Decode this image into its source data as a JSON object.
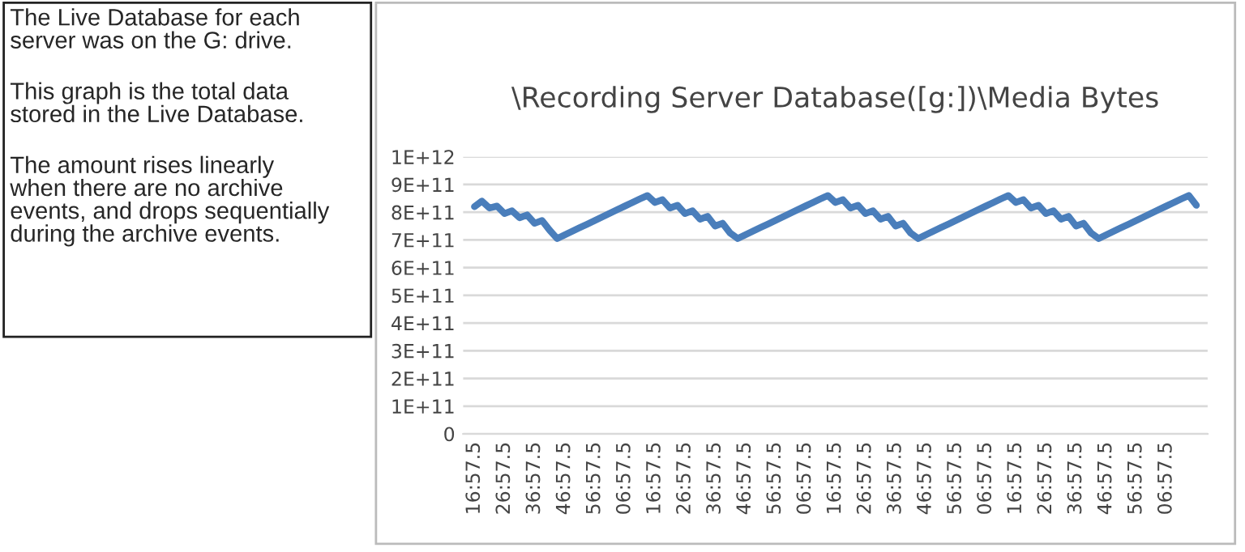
{
  "chart_data": {
    "type": "line",
    "title": "\\Recording Server Database([g:])\\Media Bytes",
    "annotations": [
      "The Live Database for each server was on the G: drive.",
      "This graph is the total data stored in the Live Database.",
      "The amount rises linearly when there are no archive events, and drops sequentially during the archive events."
    ],
    "categories": [
      "16:57.5",
      null,
      null,
      null,
      "26:57.5",
      null,
      null,
      null,
      "36:57.5",
      null,
      null,
      null,
      "46:57.5",
      null,
      null,
      null,
      "56:57.5",
      null,
      null,
      null,
      "06:57.5",
      null,
      null,
      null,
      "16:57.5",
      null,
      null,
      null,
      "26:57.5",
      null,
      null,
      null,
      "36:57.5",
      null,
      null,
      null,
      "46:57.5",
      null,
      null,
      null,
      "56:57.5",
      null,
      null,
      null,
      "06:57.5",
      null,
      null,
      null,
      "16:57.5",
      null,
      null,
      null,
      "26:57.5",
      null,
      null,
      null,
      "36:57.5",
      null,
      null,
      null,
      "46:57.5",
      null,
      null,
      null,
      "56:57.5",
      null,
      null,
      null,
      "06:57.5",
      null,
      null,
      null,
      "16:57.5",
      null,
      null,
      null,
      "26:57.5",
      null,
      null,
      null,
      "36:57.5",
      null,
      null,
      null,
      "46:57.5",
      null,
      null,
      null,
      "56:57.5",
      null,
      null,
      null,
      "06:57.5",
      null,
      null,
      null,
      null
    ],
    "series": [
      {
        "color": "#4a7ebb",
        "values": [
          820000000000.0,
          840000000000.0,
          815000000000.0,
          822000000000.0,
          795000000000.0,
          805000000000.0,
          780000000000.0,
          790000000000.0,
          760000000000.0,
          770000000000.0,
          735000000000.0,
          705000000000.0,
          718000000000.0,
          731000000000.0,
          744000000000.0,
          757000000000.0,
          770000000000.0,
          783000000000.0,
          796000000000.0,
          809000000000.0,
          822000000000.0,
          835000000000.0,
          848000000000.0,
          860000000000.0,
          835000000000.0,
          845000000000.0,
          815000000000.0,
          825000000000.0,
          795000000000.0,
          805000000000.0,
          775000000000.0,
          785000000000.0,
          750000000000.0,
          760000000000.0,
          725000000000.0,
          705000000000.0,
          718000000000.0,
          731000000000.0,
          744000000000.0,
          757000000000.0,
          770000000000.0,
          783000000000.0,
          796000000000.0,
          809000000000.0,
          822000000000.0,
          835000000000.0,
          848000000000.0,
          860000000000.0,
          835000000000.0,
          845000000000.0,
          815000000000.0,
          825000000000.0,
          795000000000.0,
          805000000000.0,
          775000000000.0,
          785000000000.0,
          750000000000.0,
          760000000000.0,
          725000000000.0,
          705000000000.0,
          718000000000.0,
          731000000000.0,
          744000000000.0,
          757000000000.0,
          770000000000.0,
          783000000000.0,
          796000000000.0,
          809000000000.0,
          822000000000.0,
          835000000000.0,
          848000000000.0,
          860000000000.0,
          835000000000.0,
          845000000000.0,
          815000000000.0,
          825000000000.0,
          795000000000.0,
          805000000000.0,
          775000000000.0,
          785000000000.0,
          750000000000.0,
          760000000000.0,
          725000000000.0,
          705000000000.0,
          718000000000.0,
          731000000000.0,
          744000000000.0,
          757000000000.0,
          770000000000.0,
          783000000000.0,
          796000000000.0,
          809000000000.0,
          822000000000.0,
          835000000000.0,
          848000000000.0,
          860000000000.0,
          825000000000.0
        ]
      }
    ],
    "ylim": [
      0,
      1000000000000.0
    ],
    "yticks": [
      0,
      {
        "value": 100000000000.0,
        "label": "1E+11"
      },
      {
        "value": 200000000000.0,
        "label": "2E+11"
      },
      {
        "value": 300000000000.0,
        "label": "3E+11"
      },
      {
        "value": 400000000000.0,
        "label": "4E+11"
      },
      {
        "value": 500000000000.0,
        "label": "5E+11"
      },
      {
        "value": 600000000000.0,
        "label": "6E+11"
      },
      {
        "value": 700000000000.0,
        "label": "7E+11"
      },
      {
        "value": 800000000000.0,
        "label": "8E+11"
      },
      {
        "value": 900000000000.0,
        "label": "9E+11"
      },
      {
        "value": 1000000000000.0,
        "label": "1E+12"
      }
    ],
    "grid": "y",
    "legend": false,
    "marker": "none",
    "line_style": "solid"
  }
}
